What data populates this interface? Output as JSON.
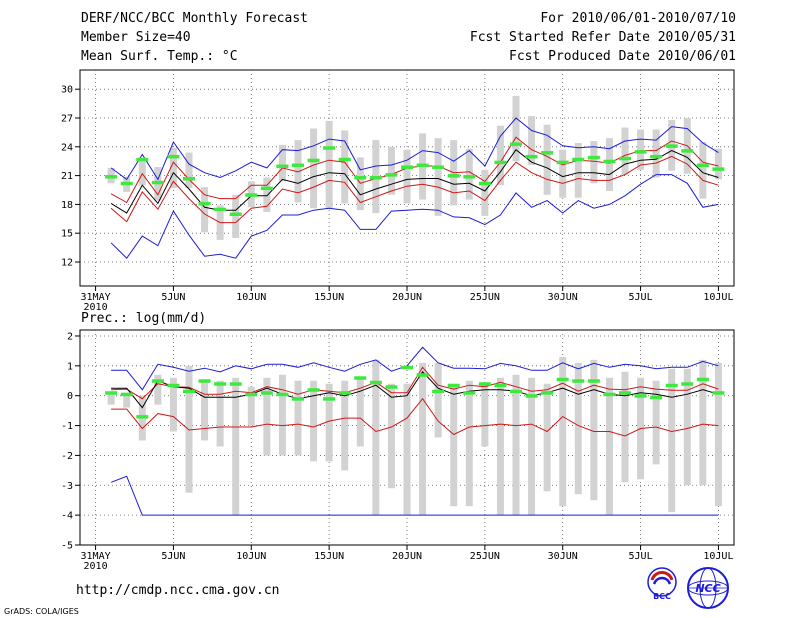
{
  "header": {
    "title": "DERF/NCC/BCC Monthly Forecast",
    "member_size": "Member Size=40",
    "variable": "Mean Surf. Temp.: °C",
    "period": "For 2010/06/01-2010/07/10",
    "started": "Fcst Started Refer Date 2010/05/31",
    "produced": "Fcst Produced Date 2010/06/01"
  },
  "precip_label": "Prec.: log(mm/d)",
  "footer": {
    "url": "http://cmdp.ncc.cma.gov.cn",
    "grads": "GrADS: COLA/IGES",
    "logo_bcc": "BCC",
    "logo_ncc": "NCC"
  },
  "colors": {
    "blue": "#1c1cd8",
    "red": "#d01818",
    "black": "#000000",
    "green": "#3ee83e",
    "bar": "#d2d2d2",
    "grid": "#606060"
  },
  "x_ticks": [
    {
      "day": 0,
      "top": "31MAY",
      "bottom": "2010"
    },
    {
      "day": 5,
      "top": "5JUN"
    },
    {
      "day": 10,
      "top": "10JUN"
    },
    {
      "day": 15,
      "top": "15JUN"
    },
    {
      "day": 20,
      "top": "20JUN"
    },
    {
      "day": 25,
      "top": "25JUN"
    },
    {
      "day": 30,
      "top": "30JUN"
    },
    {
      "day": 35,
      "top": "5JUL"
    },
    {
      "day": 40,
      "top": "10JUL"
    }
  ],
  "chart_data": [
    {
      "type": "line",
      "title": "Mean Surf. Temp.: °C",
      "x_unit": "days after 31MAY2010",
      "xlim": [
        -1,
        41
      ],
      "ylim": [
        9.5,
        32
      ],
      "yticks": [
        12,
        15,
        18,
        21,
        24,
        27,
        30
      ],
      "days_start": 1,
      "series": [
        {
          "name": "max",
          "color": "blue",
          "values": [
            21.8,
            20.6,
            23.2,
            20.6,
            24.5,
            22.2,
            21.3,
            20.8,
            21.5,
            22.4,
            21.8,
            23.7,
            23.6,
            24.1,
            24.8,
            24.6,
            21.6,
            22.0,
            22.1,
            22.6,
            23.6,
            23.4,
            22.5,
            23.6,
            22.0,
            25.1,
            27.0,
            25.7,
            25.2,
            24.1,
            23.9,
            24.0,
            23.8,
            24.6,
            24.8,
            24.7,
            26.1,
            25.9,
            24.4,
            23.4
          ]
        },
        {
          "name": "upper",
          "color": "red",
          "values": [
            19.1,
            18.2,
            21.2,
            19.0,
            22.4,
            20.6,
            19.0,
            18.6,
            18.6,
            20.0,
            20.0,
            21.8,
            21.4,
            22.1,
            22.6,
            22.4,
            20.2,
            20.7,
            21.1,
            21.8,
            22.0,
            22.0,
            21.3,
            21.4,
            20.4,
            22.4,
            25.0,
            23.7,
            23.0,
            22.1,
            22.6,
            22.5,
            22.3,
            23.1,
            23.6,
            23.6,
            24.6,
            24.1,
            22.4,
            22.0
          ]
        },
        {
          "name": "mean",
          "color": "black",
          "values": [
            18.1,
            17.1,
            20.0,
            18.1,
            21.3,
            19.6,
            17.7,
            17.4,
            17.4,
            18.9,
            18.9,
            20.6,
            20.2,
            20.9,
            21.3,
            21.2,
            19.0,
            19.6,
            20.1,
            20.6,
            20.7,
            20.7,
            20.1,
            20.2,
            19.4,
            21.4,
            23.7,
            22.4,
            21.8,
            20.9,
            21.3,
            21.3,
            21.1,
            22.2,
            22.6,
            22.7,
            23.6,
            22.9,
            21.3,
            20.8
          ]
        },
        {
          "name": "lower",
          "color": "red",
          "values": [
            17.6,
            16.2,
            19.3,
            17.5,
            20.4,
            18.6,
            17.0,
            16.1,
            16.1,
            17.6,
            17.8,
            19.6,
            19.2,
            19.8,
            20.5,
            20.3,
            18.2,
            18.8,
            19.4,
            19.9,
            20.1,
            19.8,
            19.2,
            19.4,
            18.4,
            20.5,
            22.4,
            21.3,
            20.6,
            20.2,
            20.7,
            20.5,
            20.5,
            21.1,
            22.1,
            22.3,
            23.0,
            22.2,
            20.5,
            20.0
          ]
        },
        {
          "name": "min",
          "color": "blue",
          "values": [
            14.0,
            12.4,
            14.7,
            13.7,
            17.3,
            14.8,
            12.6,
            12.8,
            12.4,
            14.7,
            15.3,
            16.9,
            16.9,
            17.4,
            17.6,
            17.4,
            15.4,
            15.4,
            17.3,
            17.4,
            17.5,
            17.4,
            16.7,
            16.6,
            15.9,
            16.9,
            19.2,
            17.7,
            18.4,
            17.1,
            18.4,
            17.6,
            18.0,
            18.9,
            20.1,
            21.1,
            21.1,
            20.2,
            17.7,
            18.0
          ]
        }
      ],
      "bars": {
        "name": "observed range",
        "low": [
          20.2,
          19.3,
          20.0,
          18.4,
          19.7,
          19.7,
          15.1,
          14.3,
          14.5,
          17.7,
          17.2,
          20.4,
          18.2,
          17.6,
          17.6,
          18.1,
          17.4,
          17.1,
          19.0,
          18.1,
          18.5,
          16.8,
          17.9,
          18.5,
          16.8,
          20.0,
          22.5,
          22.1,
          19.0,
          18.7,
          18.7,
          20.2,
          19.4,
          21.1,
          21.6,
          20.8,
          21.5,
          21.2,
          18.6,
          20.6
        ],
        "high": [
          21.8,
          20.9,
          22.8,
          21.9,
          23.9,
          23.4,
          19.8,
          17.9,
          19.0,
          20.4,
          20.8,
          24.2,
          24.7,
          25.9,
          26.7,
          25.7,
          22.9,
          24.7,
          24.0,
          23.7,
          25.4,
          24.9,
          24.7,
          23.8,
          21.6,
          26.2,
          29.3,
          27.2,
          26.3,
          23.7,
          24.4,
          24.6,
          24.9,
          26.0,
          25.8,
          25.8,
          26.8,
          27.0,
          24.5,
          23.8
        ]
      },
      "markers": {
        "name": "observed",
        "values": [
          20.9,
          20.2,
          22.7,
          20.3,
          23.0,
          20.7,
          18.1,
          17.5,
          17.0,
          19.0,
          19.7,
          22.0,
          22.1,
          22.6,
          23.9,
          22.7,
          20.8,
          20.8,
          21.1,
          21.9,
          22.1,
          21.9,
          21.0,
          20.9,
          20.2,
          22.4,
          24.3,
          23.0,
          23.4,
          22.4,
          22.7,
          22.9,
          22.5,
          22.8,
          23.5,
          23.0,
          24.1,
          23.6,
          22.1,
          21.7
        ]
      }
    },
    {
      "type": "line",
      "title": "Prec.: log(mm/d)",
      "x_unit": "days after 31MAY2010",
      "xlim": [
        -1,
        41
      ],
      "ylim": [
        -5,
        2.2
      ],
      "yticks": [
        -5,
        -4,
        -3,
        -2,
        -1,
        0,
        1,
        2
      ],
      "days_start": 1,
      "series": [
        {
          "name": "max",
          "color": "blue",
          "values": [
            0.85,
            0.85,
            0.2,
            1.05,
            0.95,
            0.82,
            0.92,
            0.8,
            1.0,
            0.9,
            1.05,
            1.05,
            0.95,
            1.1,
            0.95,
            0.82,
            1.05,
            1.2,
            0.82,
            1.0,
            1.62,
            1.1,
            0.92,
            0.92,
            0.9,
            1.08,
            1.0,
            0.85,
            0.85,
            1.1,
            0.9,
            1.08,
            0.95,
            1.05,
            1.0,
            0.9,
            0.95,
            0.95,
            1.15,
            1.0
          ]
        },
        {
          "name": "upper",
          "color": "red",
          "values": [
            0.2,
            0.22,
            -0.1,
            0.4,
            0.3,
            0.28,
            0.05,
            0.05,
            0.15,
            0.1,
            0.3,
            0.2,
            0.05,
            0.2,
            0.15,
            0.1,
            0.25,
            0.45,
            0.1,
            0.1,
            0.95,
            0.35,
            0.22,
            0.35,
            0.3,
            0.45,
            0.3,
            0.15,
            0.2,
            0.42,
            0.15,
            0.35,
            0.22,
            0.2,
            0.3,
            0.22,
            0.18,
            0.18,
            0.4,
            0.22
          ]
        },
        {
          "name": "mean",
          "color": "black",
          "values": [
            0.25,
            0.25,
            -0.4,
            0.5,
            0.3,
            0.25,
            -0.05,
            -0.05,
            -0.05,
            0.05,
            0.25,
            0.05,
            -0.1,
            0.0,
            0.1,
            0.0,
            0.15,
            0.35,
            -0.05,
            0.0,
            0.8,
            0.25,
            0.05,
            0.15,
            0.2,
            0.2,
            0.15,
            0.0,
            0.1,
            0.25,
            0.05,
            0.2,
            0.05,
            0.0,
            0.1,
            0.05,
            -0.05,
            0.05,
            0.2,
            0.05
          ]
        },
        {
          "name": "lower",
          "color": "red",
          "values": [
            -0.45,
            -0.45,
            -1.1,
            -0.6,
            -0.7,
            -1.15,
            -1.1,
            -1.05,
            -1.05,
            -1.05,
            -0.95,
            -1.0,
            -0.95,
            -1.05,
            -0.85,
            -0.75,
            -0.75,
            -1.2,
            -1.05,
            -0.75,
            -0.1,
            -0.85,
            -1.3,
            -1.05,
            -1.0,
            -0.95,
            -1.0,
            -0.95,
            -1.2,
            -0.7,
            -1.0,
            -1.2,
            -1.2,
            -1.35,
            -1.1,
            -1.05,
            -1.2,
            -1.1,
            -0.95,
            -1.0
          ]
        },
        {
          "name": "min",
          "color": "blue",
          "values": [
            -2.9,
            -2.7,
            -4.0,
            -4.0,
            -4.0,
            -4.0,
            -4.0,
            -4.0,
            -4.0,
            -4.0,
            -4.0,
            -4.0,
            -4.0,
            -4.0,
            -4.0,
            -4.0,
            -4.0,
            -4.0,
            -4.0,
            -4.0,
            -4.0,
            -4.0,
            -4.0,
            -4.0,
            -4.0,
            -4.0,
            -4.0,
            -4.0,
            -4.0,
            -4.0,
            -4.0,
            -4.0,
            -4.0,
            -4.0,
            -4.0,
            -4.0,
            -4.0,
            -4.0,
            -4.0,
            -4.0
          ]
        }
      ],
      "bars": {
        "name": "observed range",
        "low": [
          -0.3,
          -0.4,
          -1.5,
          -0.3,
          -1.2,
          -3.25,
          -1.5,
          -1.7,
          -4.0,
          -1.0,
          -2.0,
          -2.0,
          -2.0,
          -2.2,
          -2.2,
          -2.5,
          -1.7,
          -4.0,
          -3.1,
          -4.0,
          -4.0,
          -1.4,
          -3.7,
          -3.7,
          -1.7,
          -4.0,
          -4.0,
          -4.0,
          -3.2,
          -3.7,
          -3.3,
          -3.5,
          -4.0,
          -2.9,
          -2.8,
          -2.3,
          -3.9,
          -3.0,
          -3.0,
          -3.7
        ],
        "high": [
          0.1,
          0.1,
          0.0,
          0.7,
          0.6,
          1.0,
          0.5,
          0.5,
          0.6,
          0.3,
          0.6,
          0.7,
          0.5,
          0.5,
          0.4,
          0.5,
          0.6,
          1.2,
          0.4,
          0.4,
          1.1,
          1.1,
          0.4,
          0.5,
          0.4,
          0.6,
          0.7,
          0.6,
          0.4,
          1.3,
          1.1,
          1.2,
          0.6,
          0.8,
          0.6,
          0.5,
          0.9,
          0.9,
          1.2,
          1.1
        ]
      },
      "markers": {
        "name": "observed",
        "values": [
          0.1,
          0.05,
          -0.7,
          0.5,
          0.35,
          0.15,
          0.5,
          0.4,
          0.4,
          0.05,
          0.1,
          0.05,
          -0.1,
          0.2,
          -0.1,
          0.1,
          0.6,
          0.45,
          0.3,
          0.95,
          0.7,
          0.15,
          0.35,
          0.1,
          0.4,
          0.35,
          0.15,
          0.0,
          0.1,
          0.55,
          0.5,
          0.5,
          0.05,
          0.1,
          0.0,
          -0.05,
          0.35,
          0.4,
          0.55,
          0.1
        ]
      }
    }
  ]
}
